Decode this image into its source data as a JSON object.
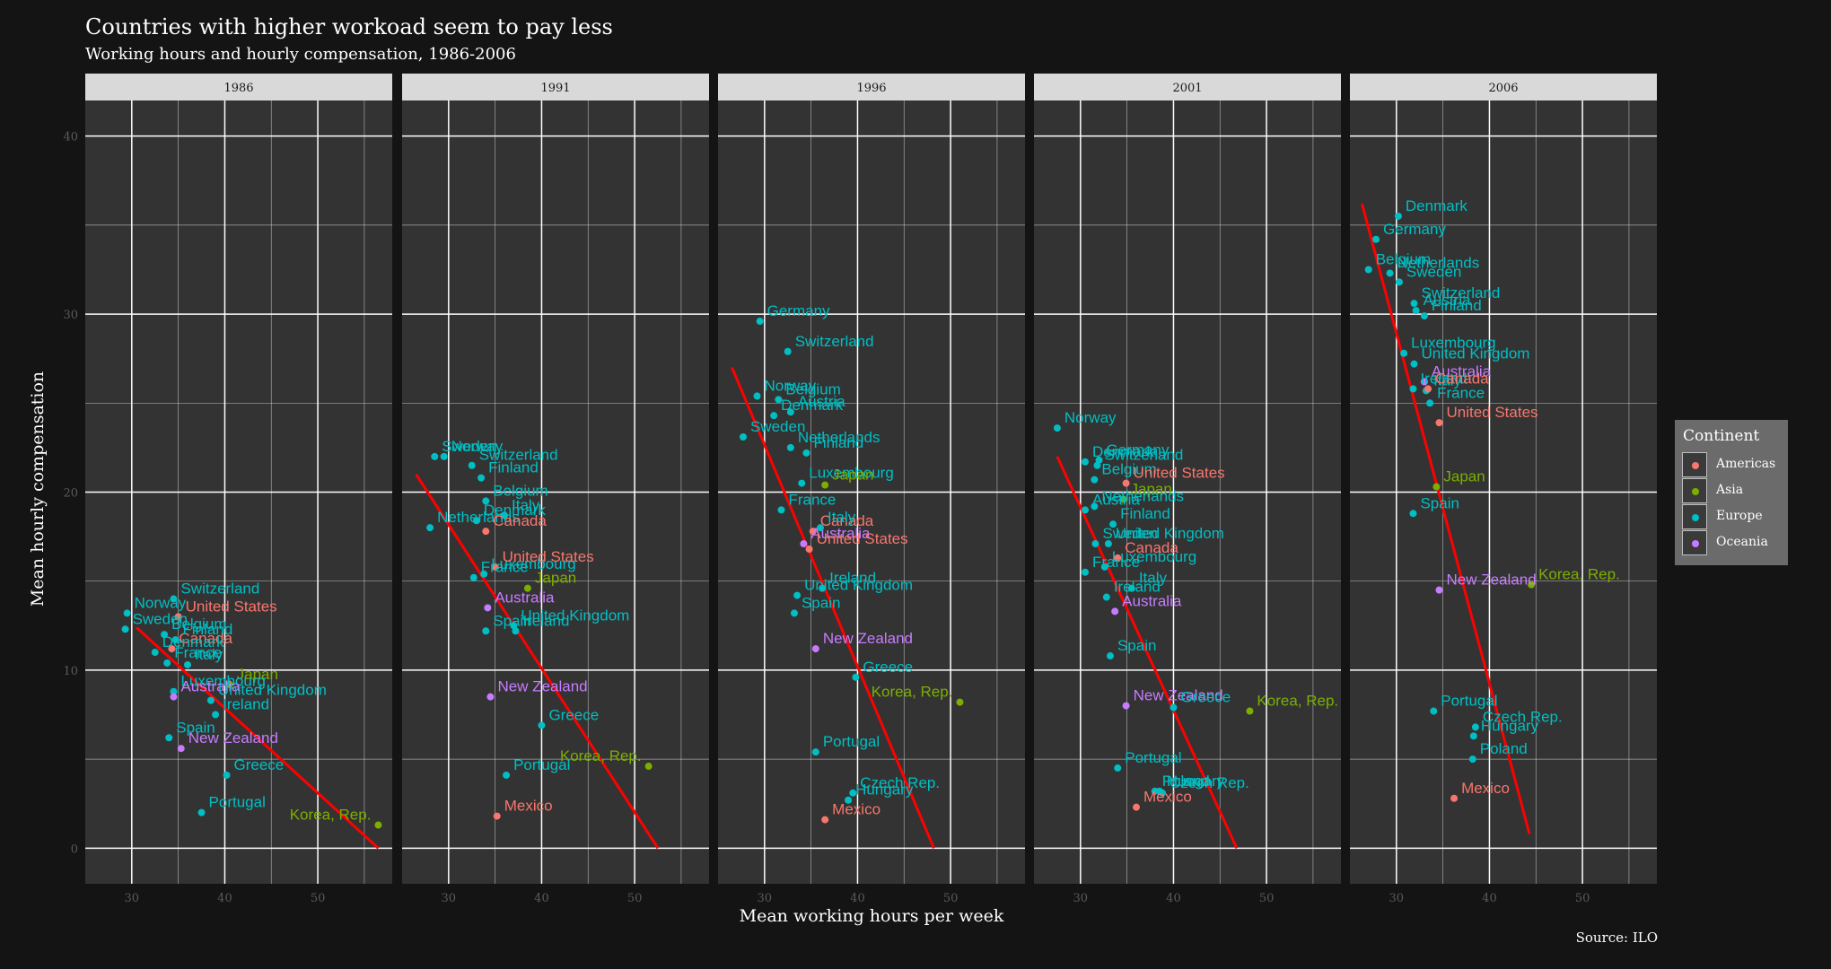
{
  "title": "Countries with higher workoad seem to pay less",
  "subtitle": "Working hours and hourly compensation, 1986-2006",
  "caption": "Source: ILO",
  "colors": {
    "background": "#141414",
    "panel": "#333333",
    "strip": "#d9d9d9",
    "grid": "#ffffff",
    "trend": "#ff0000",
    "Americas": "#F8766D",
    "Asia": "#7CAE00",
    "Europe": "#00BFC4",
    "Oceania": "#C77CFF"
  },
  "legend": {
    "title": "Continent",
    "items": [
      "Americas",
      "Asia",
      "Europe",
      "Oceania"
    ]
  },
  "chart_data": {
    "type": "scatter",
    "xlabel": "Mean working hours per week",
    "ylabel": "Mean hourly compensation",
    "xlim": [
      25,
      58
    ],
    "ylim": [
      -2,
      42
    ],
    "x_ticks": [
      30,
      40,
      50
    ],
    "y_ticks": [
      0,
      10,
      20,
      30,
      40
    ],
    "grid": true,
    "legend_position": "right",
    "panels": [
      {
        "label": "1986",
        "trend": [
          [
            30.5,
            12.4
          ],
          [
            56.5,
            0
          ]
        ],
        "points": [
          {
            "country": "Switzerland",
            "continent": "Europe",
            "x": 34.5,
            "y": 14.0
          },
          {
            "country": "United States",
            "continent": "Americas",
            "x": 35.0,
            "y": 13.0
          },
          {
            "country": "Norway",
            "continent": "Europe",
            "x": 29.5,
            "y": 13.2
          },
          {
            "country": "Canada",
            "continent": "Americas",
            "x": 34.3,
            "y": 11.2
          },
          {
            "country": "Sweden",
            "continent": "Europe",
            "x": 29.3,
            "y": 12.3
          },
          {
            "country": "Belgium",
            "continent": "Europe",
            "x": 33.5,
            "y": 12.0
          },
          {
            "country": "Finland",
            "continent": "Europe",
            "x": 34.7,
            "y": 11.7
          },
          {
            "country": "Denmark",
            "continent": "Europe",
            "x": 32.5,
            "y": 11.0
          },
          {
            "country": "Italy",
            "continent": "Europe",
            "x": 36.0,
            "y": 10.3
          },
          {
            "country": "France",
            "continent": "Europe",
            "x": 33.8,
            "y": 10.4
          },
          {
            "country": "Japan",
            "continent": "Asia",
            "x": 40.5,
            "y": 9.2
          },
          {
            "country": "Luxembourg",
            "continent": "Europe",
            "x": 34.5,
            "y": 8.8
          },
          {
            "country": "Australia",
            "continent": "Oceania",
            "x": 34.5,
            "y": 8.5
          },
          {
            "country": "United Kingdom",
            "continent": "Europe",
            "x": 38.5,
            "y": 8.3
          },
          {
            "country": "Ireland",
            "continent": "Europe",
            "x": 39.0,
            "y": 7.5
          },
          {
            "country": "Spain",
            "continent": "Europe",
            "x": 34.0,
            "y": 6.2
          },
          {
            "country": "New Zealand",
            "continent": "Oceania",
            "x": 35.3,
            "y": 5.6
          },
          {
            "country": "Greece",
            "continent": "Europe",
            "x": 40.2,
            "y": 4.1
          },
          {
            "country": "Portugal",
            "continent": "Europe",
            "x": 37.5,
            "y": 2.0
          },
          {
            "country": "Korea, Rep.",
            "continent": "Asia",
            "x": 56.5,
            "y": 1.3
          }
        ]
      },
      {
        "label": "1991",
        "trend": [
          [
            26.5,
            21.0
          ],
          [
            52.5,
            0
          ]
        ],
        "points": [
          {
            "country": "Sweden",
            "continent": "Europe",
            "x": 28.5,
            "y": 22.0
          },
          {
            "country": "Norway",
            "continent": "Europe",
            "x": 29.5,
            "y": 22.0
          },
          {
            "country": "Switzerland",
            "continent": "Europe",
            "x": 32.5,
            "y": 21.5
          },
          {
            "country": "Finland",
            "continent": "Europe",
            "x": 33.5,
            "y": 20.8
          },
          {
            "country": "Belgium",
            "continent": "Europe",
            "x": 34.0,
            "y": 19.5
          },
          {
            "country": "Italy",
            "continent": "Europe",
            "x": 36.0,
            "y": 18.7
          },
          {
            "country": "Denmark",
            "continent": "Europe",
            "x": 33.0,
            "y": 18.4
          },
          {
            "country": "Netherlands",
            "continent": "Europe",
            "x": 28.0,
            "y": 18.0
          },
          {
            "country": "Canada",
            "continent": "Americas",
            "x": 34.0,
            "y": 17.8
          },
          {
            "country": "Luxembourg",
            "continent": "Europe",
            "x": 33.8,
            "y": 15.4
          },
          {
            "country": "United States",
            "continent": "Americas",
            "x": 35.0,
            "y": 15.8
          },
          {
            "country": "France",
            "continent": "Europe",
            "x": 32.7,
            "y": 15.2
          },
          {
            "country": "Japan",
            "continent": "Asia",
            "x": 38.5,
            "y": 14.6
          },
          {
            "country": "Australia",
            "continent": "Oceania",
            "x": 34.2,
            "y": 13.5
          },
          {
            "country": "United Kingdom",
            "continent": "Europe",
            "x": 37.0,
            "y": 12.5
          },
          {
            "country": "Spain",
            "continent": "Europe",
            "x": 34.0,
            "y": 12.2
          },
          {
            "country": "Ireland",
            "continent": "Europe",
            "x": 37.2,
            "y": 12.2
          },
          {
            "country": "New Zealand",
            "continent": "Oceania",
            "x": 34.5,
            "y": 8.5
          },
          {
            "country": "Greece",
            "continent": "Europe",
            "x": 40.0,
            "y": 6.9
          },
          {
            "country": "Korea, Rep.",
            "continent": "Asia",
            "x": 51.5,
            "y": 4.6
          },
          {
            "country": "Portugal",
            "continent": "Europe",
            "x": 36.2,
            "y": 4.1
          },
          {
            "country": "Mexico",
            "continent": "Americas",
            "x": 35.2,
            "y": 1.8
          }
        ]
      },
      {
        "label": "1996",
        "trend": [
          [
            26.5,
            27.0
          ],
          [
            48.2,
            0
          ]
        ],
        "points": [
          {
            "country": "Germany",
            "continent": "Europe",
            "x": 29.5,
            "y": 29.6
          },
          {
            "country": "Switzerland",
            "continent": "Europe",
            "x": 32.5,
            "y": 27.9
          },
          {
            "country": "Norway",
            "continent": "Europe",
            "x": 29.2,
            "y": 25.4
          },
          {
            "country": "Belgium",
            "continent": "Europe",
            "x": 31.5,
            "y": 25.2
          },
          {
            "country": "Denmark",
            "continent": "Europe",
            "x": 31.0,
            "y": 24.3
          },
          {
            "country": "Austria",
            "continent": "Europe",
            "x": 32.8,
            "y": 24.5
          },
          {
            "country": "Sweden",
            "continent": "Europe",
            "x": 27.7,
            "y": 23.1
          },
          {
            "country": "Netherlands",
            "continent": "Europe",
            "x": 32.8,
            "y": 22.5
          },
          {
            "country": "Finland",
            "continent": "Europe",
            "x": 34.5,
            "y": 22.2
          },
          {
            "country": "Luxembourg",
            "continent": "Europe",
            "x": 34.0,
            "y": 20.5
          },
          {
            "country": "Japan",
            "continent": "Asia",
            "x": 36.5,
            "y": 20.4
          },
          {
            "country": "France",
            "continent": "Europe",
            "x": 31.8,
            "y": 19.0
          },
          {
            "country": "Canada",
            "continent": "Americas",
            "x": 35.2,
            "y": 17.8
          },
          {
            "country": "Italy",
            "continent": "Europe",
            "x": 36.0,
            "y": 18.0
          },
          {
            "country": "Australia",
            "continent": "Oceania",
            "x": 34.2,
            "y": 17.1
          },
          {
            "country": "United States",
            "continent": "Americas",
            "x": 34.8,
            "y": 16.8
          },
          {
            "country": "United Kingdom",
            "continent": "Europe",
            "x": 33.5,
            "y": 14.2
          },
          {
            "country": "Ireland",
            "continent": "Europe",
            "x": 36.2,
            "y": 14.6
          },
          {
            "country": "Spain",
            "continent": "Europe",
            "x": 33.2,
            "y": 13.2
          },
          {
            "country": "New Zealand",
            "continent": "Oceania",
            "x": 35.5,
            "y": 11.2
          },
          {
            "country": "Greece",
            "continent": "Europe",
            "x": 39.8,
            "y": 9.6
          },
          {
            "country": "Korea, Rep.",
            "continent": "Asia",
            "x": 51.0,
            "y": 8.2
          },
          {
            "country": "Portugal",
            "continent": "Europe",
            "x": 35.5,
            "y": 5.4
          },
          {
            "country": "Czech Rep.",
            "continent": "Europe",
            "x": 39.5,
            "y": 3.1
          },
          {
            "country": "Hungary",
            "continent": "Europe",
            "x": 39.0,
            "y": 2.7
          },
          {
            "country": "Mexico",
            "continent": "Americas",
            "x": 36.5,
            "y": 1.6
          }
        ]
      },
      {
        "label": "2001",
        "trend": [
          [
            27.5,
            22.0
          ],
          [
            46.8,
            0
          ]
        ],
        "points": [
          {
            "country": "Norway",
            "continent": "Europe",
            "x": 27.5,
            "y": 23.6
          },
          {
            "country": "Germany",
            "continent": "Europe",
            "x": 32.0,
            "y": 21.8
          },
          {
            "country": "Denmark",
            "continent": "Europe",
            "x": 30.5,
            "y": 21.7
          },
          {
            "country": "Switzerland",
            "continent": "Europe",
            "x": 31.8,
            "y": 21.5
          },
          {
            "country": "Belgium",
            "continent": "Europe",
            "x": 31.5,
            "y": 20.7
          },
          {
            "country": "United States",
            "continent": "Americas",
            "x": 34.9,
            "y": 20.5
          },
          {
            "country": "Japan",
            "continent": "Asia",
            "x": 34.6,
            "y": 19.6
          },
          {
            "country": "Netherlands",
            "continent": "Europe",
            "x": 31.5,
            "y": 19.2
          },
          {
            "country": "Austria",
            "continent": "Europe",
            "x": 30.5,
            "y": 19.0
          },
          {
            "country": "Finland",
            "continent": "Europe",
            "x": 33.5,
            "y": 18.2
          },
          {
            "country": "Sweden",
            "continent": "Europe",
            "x": 31.6,
            "y": 17.1
          },
          {
            "country": "United Kingdom",
            "continent": "Europe",
            "x": 33.0,
            "y": 17.1
          },
          {
            "country": "Luxembourg",
            "continent": "Europe",
            "x": 32.6,
            "y": 15.8
          },
          {
            "country": "Canada",
            "continent": "Americas",
            "x": 34.0,
            "y": 16.3
          },
          {
            "country": "France",
            "continent": "Europe",
            "x": 30.5,
            "y": 15.5
          },
          {
            "country": "Italy",
            "continent": "Europe",
            "x": 35.5,
            "y": 14.6
          },
          {
            "country": "Ireland",
            "continent": "Europe",
            "x": 32.8,
            "y": 14.1
          },
          {
            "country": "Australia",
            "continent": "Oceania",
            "x": 33.7,
            "y": 13.3
          },
          {
            "country": "Spain",
            "continent": "Europe",
            "x": 33.2,
            "y": 10.8
          },
          {
            "country": "New Zealand",
            "continent": "Oceania",
            "x": 34.9,
            "y": 8.0
          },
          {
            "country": "Greece",
            "continent": "Europe",
            "x": 40.0,
            "y": 7.9
          },
          {
            "country": "Korea, Rep.",
            "continent": "Asia",
            "x": 48.2,
            "y": 7.7
          },
          {
            "country": "Portugal",
            "continent": "Europe",
            "x": 34.0,
            "y": 4.5
          },
          {
            "country": "Poland",
            "continent": "Europe",
            "x": 38.0,
            "y": 3.2
          },
          {
            "country": "Hungary",
            "continent": "Europe",
            "x": 38.5,
            "y": 3.2
          },
          {
            "country": "Czech Rep.",
            "continent": "Europe",
            "x": 38.8,
            "y": 3.1
          },
          {
            "country": "Mexico",
            "continent": "Americas",
            "x": 36.0,
            "y": 2.3
          }
        ]
      },
      {
        "label": "2006",
        "trend": [
          [
            26.3,
            36.2
          ],
          [
            44.3,
            0.8
          ]
        ],
        "points": [
          {
            "country": "Denmark",
            "continent": "Europe",
            "x": 30.2,
            "y": 35.5
          },
          {
            "country": "Germany",
            "continent": "Europe",
            "x": 27.8,
            "y": 34.2
          },
          {
            "country": "Netherlands",
            "continent": "Europe",
            "x": 29.3,
            "y": 32.3
          },
          {
            "country": "Belgium",
            "continent": "Europe",
            "x": 27.0,
            "y": 32.5
          },
          {
            "country": "Sweden",
            "continent": "Europe",
            "x": 30.3,
            "y": 31.8
          },
          {
            "country": "Switzerland",
            "continent": "Europe",
            "x": 31.9,
            "y": 30.6
          },
          {
            "country": "Austria",
            "continent": "Europe",
            "x": 32.1,
            "y": 30.2
          },
          {
            "country": "Finland",
            "continent": "Europe",
            "x": 33.0,
            "y": 29.9
          },
          {
            "country": "Luxembourg",
            "continent": "Europe",
            "x": 30.8,
            "y": 27.8
          },
          {
            "country": "United Kingdom",
            "continent": "Europe",
            "x": 31.9,
            "y": 27.2
          },
          {
            "country": "Australia",
            "continent": "Oceania",
            "x": 33.0,
            "y": 26.2
          },
          {
            "country": "Ireland",
            "continent": "Europe",
            "x": 31.8,
            "y": 25.8
          },
          {
            "country": "Italy",
            "continent": "Europe",
            "x": 33.2,
            "y": 25.7
          },
          {
            "country": "Canada",
            "continent": "Americas",
            "x": 33.4,
            "y": 25.8
          },
          {
            "country": "France",
            "continent": "Europe",
            "x": 33.6,
            "y": 25.0
          },
          {
            "country": "United States",
            "continent": "Americas",
            "x": 34.6,
            "y": 23.9
          },
          {
            "country": "Japan",
            "continent": "Asia",
            "x": 34.3,
            "y": 20.3
          },
          {
            "country": "Spain",
            "continent": "Europe",
            "x": 31.8,
            "y": 18.8
          },
          {
            "country": "Korea, Rep.",
            "continent": "Asia",
            "x": 44.5,
            "y": 14.8
          },
          {
            "country": "New Zealand",
            "continent": "Oceania",
            "x": 34.6,
            "y": 14.5
          },
          {
            "country": "Portugal",
            "continent": "Europe",
            "x": 34.0,
            "y": 7.7
          },
          {
            "country": "Czech Rep.",
            "continent": "Europe",
            "x": 38.5,
            "y": 6.8
          },
          {
            "country": "Hungary",
            "continent": "Europe",
            "x": 38.3,
            "y": 6.3
          },
          {
            "country": "Poland",
            "continent": "Europe",
            "x": 38.2,
            "y": 5.0
          },
          {
            "country": "Mexico",
            "continent": "Americas",
            "x": 36.2,
            "y": 2.8
          }
        ]
      }
    ]
  }
}
